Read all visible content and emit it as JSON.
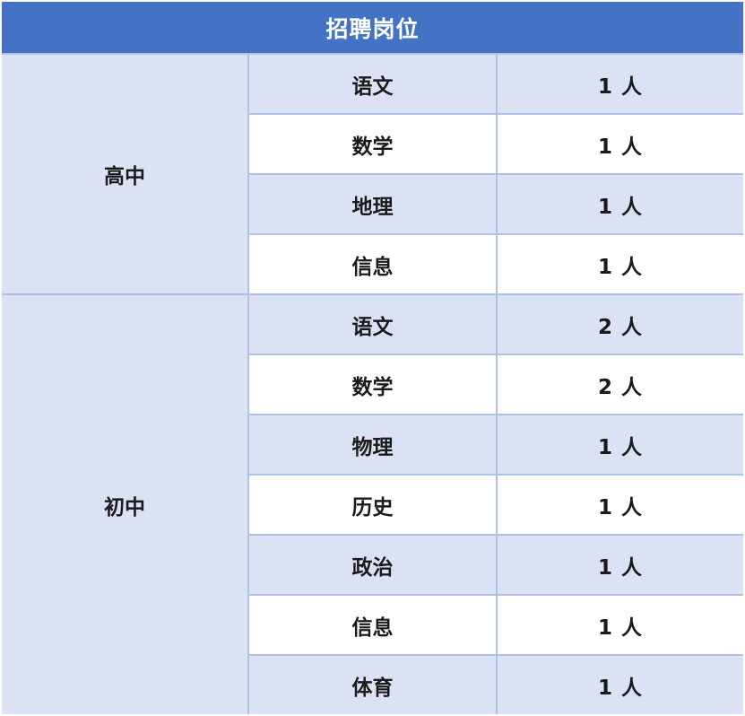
{
  "table": {
    "title": "招聘岗位",
    "groups": [
      {
        "name": "高中",
        "rows": [
          {
            "subject": "语文",
            "count": "1 人"
          },
          {
            "subject": "数学",
            "count": "1 人"
          },
          {
            "subject": "地理",
            "count": "1 人"
          },
          {
            "subject": "信息",
            "count": "1 人"
          }
        ]
      },
      {
        "name": "初中",
        "rows": [
          {
            "subject": "语文",
            "count": "2 人"
          },
          {
            "subject": "数学",
            "count": "2 人"
          },
          {
            "subject": "物理",
            "count": "1 人"
          },
          {
            "subject": "历史",
            "count": "1 人"
          },
          {
            "subject": "政治",
            "count": "1 人"
          },
          {
            "subject": "信息",
            "count": "1 人"
          },
          {
            "subject": "体育",
            "count": "1 人"
          }
        ]
      }
    ]
  },
  "colors": {
    "header_bg": "#4472C4",
    "header_text": "#FFFFFF",
    "band_bg": "#DAE2F3",
    "row_bg": "#FFFFFF",
    "border": "#AEC2E6",
    "text": "#1B1B1B"
  }
}
